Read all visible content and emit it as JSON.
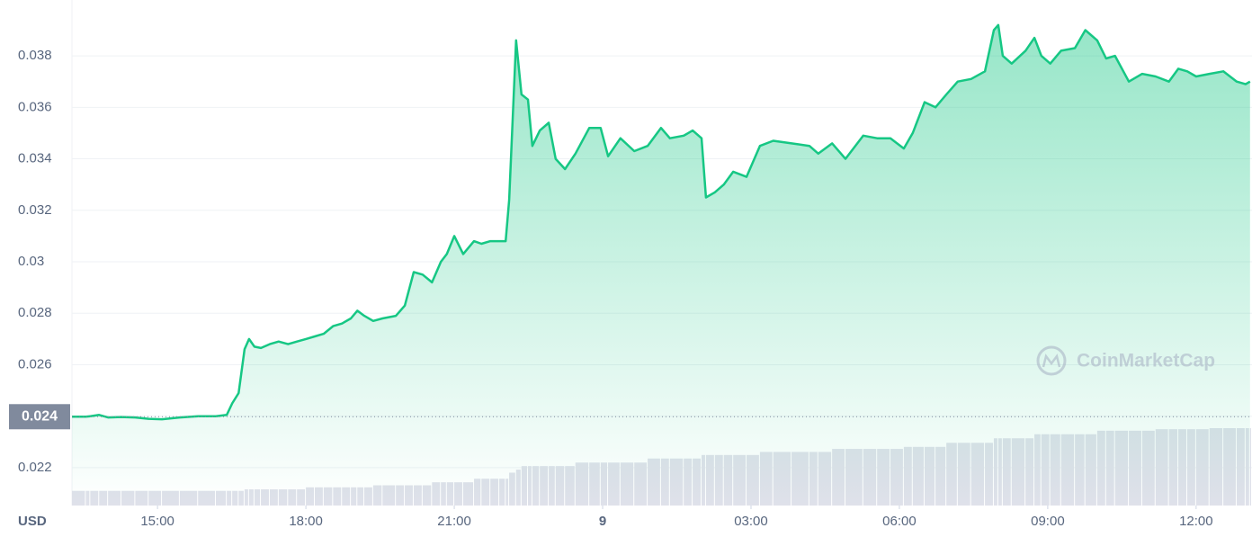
{
  "chart_data": {
    "type": "area",
    "x_axis_label": "USD",
    "watermark": "CoinMarketCap",
    "color": "#16c784",
    "volume_color": "#dfe1ea",
    "grid": true,
    "xlim": [
      13.27,
      37.13
    ],
    "ylim": [
      0.02053,
      0.04017
    ],
    "y2lim": [
      0,
      100
    ],
    "xticks": [
      {
        "value": 15,
        "label": "15:00"
      },
      {
        "value": 18,
        "label": "18:00"
      },
      {
        "value": 21,
        "label": "21:00"
      },
      {
        "value": 24,
        "label": "9"
      },
      {
        "value": 27,
        "label": "03:00"
      },
      {
        "value": 30,
        "label": "06:00"
      },
      {
        "value": 33,
        "label": "09:00"
      },
      {
        "value": 36,
        "label": "12:00"
      }
    ],
    "yticks": [
      0.022,
      0.024,
      0.026,
      0.028,
      0.03,
      0.032,
      0.034,
      0.036,
      0.038
    ],
    "price_label": {
      "value": 0.02398,
      "label": "0.024"
    },
    "x": [
      13.27,
      13.55,
      13.64,
      13.82,
      14.0,
      14.27,
      14.55,
      14.82,
      15.09,
      15.45,
      15.82,
      16.18,
      16.4,
      16.51,
      16.64,
      16.76,
      16.85,
      16.96,
      17.09,
      17.27,
      17.45,
      17.64,
      17.82,
      18.0,
      18.18,
      18.36,
      18.55,
      18.73,
      18.91,
      19.04,
      19.18,
      19.36,
      19.55,
      19.82,
      20.0,
      20.18,
      20.36,
      20.55,
      20.73,
      20.85,
      21.0,
      21.18,
      21.4,
      21.55,
      21.73,
      21.91,
      22.04,
      22.11,
      22.25,
      22.36,
      22.49,
      22.58,
      22.73,
      22.91,
      23.05,
      23.24,
      23.45,
      23.73,
      23.96,
      24.11,
      24.36,
      24.64,
      24.91,
      25.18,
      25.36,
      25.64,
      25.82,
      26.0,
      26.09,
      26.27,
      26.45,
      26.64,
      26.91,
      27.18,
      27.45,
      27.82,
      28.18,
      28.36,
      28.64,
      28.91,
      29.27,
      29.55,
      29.82,
      30.09,
      30.27,
      30.51,
      30.73,
      30.95,
      31.18,
      31.45,
      31.73,
      31.91,
      32.0,
      32.09,
      32.27,
      32.55,
      32.73,
      32.87,
      33.05,
      33.27,
      33.55,
      33.76,
      34.0,
      34.18,
      34.36,
      34.64,
      34.91,
      35.18,
      35.45,
      35.64,
      35.82,
      36.0,
      36.27,
      36.55,
      36.82,
      37.0,
      37.09
    ],
    "series": [
      {
        "name": "Price",
        "color": "#16c784",
        "values": [
          0.02398,
          0.02398,
          0.024,
          0.02405,
          0.02395,
          0.02397,
          0.02395,
          0.0239,
          0.02388,
          0.02395,
          0.024,
          0.024,
          0.02405,
          0.0245,
          0.0249,
          0.0266,
          0.027,
          0.0267,
          0.02665,
          0.0268,
          0.0269,
          0.0268,
          0.0269,
          0.027,
          0.0271,
          0.0272,
          0.0275,
          0.0276,
          0.0278,
          0.0281,
          0.0279,
          0.0277,
          0.0278,
          0.0279,
          0.0283,
          0.0296,
          0.0295,
          0.0292,
          0.03,
          0.0303,
          0.031,
          0.0303,
          0.0308,
          0.0307,
          0.0308,
          0.0308,
          0.0308,
          0.0324,
          0.0386,
          0.0365,
          0.0363,
          0.0345,
          0.0351,
          0.0354,
          0.034,
          0.0336,
          0.0342,
          0.0352,
          0.0352,
          0.0341,
          0.0348,
          0.0343,
          0.0345,
          0.0352,
          0.0348,
          0.0349,
          0.0351,
          0.0348,
          0.0325,
          0.0327,
          0.033,
          0.0335,
          0.0333,
          0.0345,
          0.0347,
          0.0346,
          0.0345,
          0.0342,
          0.0346,
          0.034,
          0.0349,
          0.0348,
          0.0348,
          0.0344,
          0.035,
          0.0362,
          0.036,
          0.0365,
          0.037,
          0.0371,
          0.0374,
          0.039,
          0.0392,
          0.038,
          0.0377,
          0.0382,
          0.0387,
          0.038,
          0.0377,
          0.0382,
          0.0383,
          0.039,
          0.0386,
          0.0379,
          0.038,
          0.037,
          0.0373,
          0.0372,
          0.037,
          0.0375,
          0.0374,
          0.0372,
          0.0373,
          0.0374,
          0.037,
          0.0369,
          0.037
        ]
      },
      {
        "name": "Volume",
        "axis": "y2",
        "values": [
          2.9,
          2.9,
          2.9,
          2.9,
          2.9,
          2.9,
          2.9,
          2.9,
          2.9,
          2.9,
          2.9,
          2.9,
          2.9,
          2.9,
          2.9,
          3.2,
          3.2,
          3.2,
          3.2,
          3.2,
          3.2,
          3.2,
          3.2,
          3.6,
          3.6,
          3.6,
          3.6,
          3.6,
          3.6,
          3.6,
          3.6,
          4.0,
          4.0,
          4.0,
          4.0,
          4.0,
          4.0,
          4.6,
          4.6,
          4.6,
          4.6,
          4.6,
          5.3,
          5.3,
          5.3,
          5.3,
          5.3,
          6.5,
          7.1,
          7.8,
          7.8,
          7.8,
          7.8,
          7.8,
          7.8,
          7.8,
          8.5,
          8.5,
          8.5,
          8.5,
          8.5,
          8.5,
          9.3,
          9.3,
          9.3,
          9.3,
          9.3,
          10.0,
          10.0,
          10.0,
          10.0,
          10.0,
          10.0,
          10.6,
          10.6,
          10.6,
          10.6,
          10.6,
          11.2,
          11.2,
          11.2,
          11.2,
          11.2,
          11.6,
          11.6,
          11.6,
          11.6,
          12.4,
          12.4,
          12.4,
          12.4,
          13.3,
          13.3,
          13.3,
          13.3,
          13.3,
          14.1,
          14.1,
          14.1,
          14.1,
          14.1,
          14.1,
          14.8,
          14.8,
          14.8,
          14.8,
          14.8,
          15.1,
          15.1,
          15.1,
          15.1,
          15.1,
          15.3,
          15.3,
          15.3,
          15.3,
          15.3
        ]
      }
    ]
  }
}
